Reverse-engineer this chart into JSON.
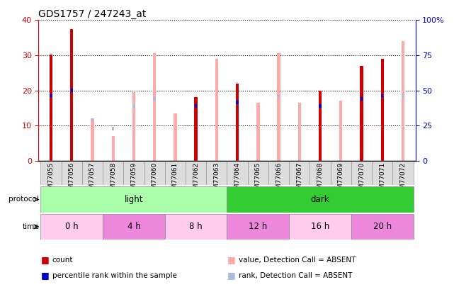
{
  "title": "GDS1757 / 247243_at",
  "samples": [
    "GSM77055",
    "GSM77056",
    "GSM77057",
    "GSM77058",
    "GSM77059",
    "GSM77060",
    "GSM77061",
    "GSM77062",
    "GSM77063",
    "GSM77064",
    "GSM77065",
    "GSM77066",
    "GSM77067",
    "GSM77068",
    "GSM77069",
    "GSM77070",
    "GSM77071",
    "GSM77072"
  ],
  "count": [
    30.2,
    37.5,
    0,
    0,
    0,
    0,
    0,
    18,
    0,
    22,
    0,
    0,
    0,
    20,
    0,
    27,
    29,
    0
  ],
  "rank_pct": [
    47.5,
    51.5,
    0,
    0,
    0,
    0,
    0,
    40,
    0,
    42.5,
    0,
    0,
    0,
    40,
    0,
    45,
    47.5,
    0
  ],
  "absent_value": [
    0,
    0,
    12,
    7,
    19.5,
    30.5,
    13.5,
    17,
    29,
    0,
    16.5,
    30.5,
    16.5,
    0,
    17,
    0,
    0,
    34
  ],
  "absent_rank_pct": [
    0,
    0,
    30,
    24,
    40,
    45,
    0,
    0,
    0,
    0,
    0,
    47.5,
    0,
    0,
    0,
    0,
    0,
    47.5
  ],
  "ylim_left": [
    0,
    40
  ],
  "ylim_right": [
    0,
    100
  ],
  "yticks_left": [
    0,
    10,
    20,
    30,
    40
  ],
  "yticks_right": [
    0,
    25,
    50,
    75,
    100
  ],
  "protocol_groups": [
    {
      "label": "light",
      "start": 0,
      "end": 9,
      "color": "#AAFFAA"
    },
    {
      "label": "dark",
      "start": 9,
      "end": 18,
      "color": "#33CC33"
    }
  ],
  "time_groups": [
    {
      "label": "0 h",
      "start": 0,
      "end": 3,
      "color": "#FFCCEE"
    },
    {
      "label": "4 h",
      "start": 3,
      "end": 6,
      "color": "#EE88DD"
    },
    {
      "label": "8 h",
      "start": 6,
      "end": 9,
      "color": "#FFCCEE"
    },
    {
      "label": "12 h",
      "start": 9,
      "end": 12,
      "color": "#EE88DD"
    },
    {
      "label": "16 h",
      "start": 12,
      "end": 15,
      "color": "#FFCCEE"
    },
    {
      "label": "20 h",
      "start": 15,
      "end": 18,
      "color": "#EE88DD"
    }
  ],
  "color_count": "#CC0000",
  "color_rank": "#0000CC",
  "color_absent_value": "#FFAAAA",
  "color_absent_rank": "#AABBDD",
  "bar_width": 0.15,
  "rank_bar_width": 0.12,
  "tick_fontsize": 6.5,
  "label_fontsize": 8,
  "title_fontsize": 10,
  "left_tick_color": "#CC0000",
  "right_tick_color": "#0000CC",
  "grid_color": "black",
  "bg_color": "white",
  "cell_bg": "#DDDDDD"
}
